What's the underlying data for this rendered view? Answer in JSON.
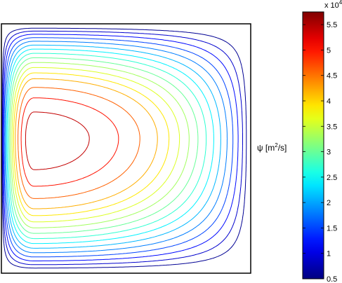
{
  "chart_data": {
    "type": "contour",
    "colorbar": {
      "label": "ψ [m²/s]",
      "label_parts": {
        "psi": "ψ",
        "open": "[m",
        "exp": "2",
        "close": "/s]"
      },
      "multiplier_label": "x 10",
      "multiplier_exponent": "4",
      "range": [
        0.5,
        5.75
      ],
      "ticks": [
        "0.5",
        "1",
        "1.5",
        "2",
        "2.5",
        "3",
        "3.5",
        "4",
        "4.5",
        "5",
        "5.5"
      ],
      "tick_values": [
        0.5,
        1,
        1.5,
        2,
        2.5,
        3,
        3.5,
        4,
        4.5,
        5,
        5.5
      ],
      "colormap": "jet"
    },
    "contour_levels": [
      0.6,
      0.9,
      1.2,
      1.5,
      1.8,
      2.1,
      2.4,
      2.7,
      3.0,
      3.3,
      3.6,
      3.9,
      4.2,
      4.6,
      5.0,
      5.4
    ],
    "field": {
      "center": [
        0.13,
        0.46
      ],
      "peak_value": 5.7,
      "description": "single clockwise circulation cell concentrated near west boundary"
    }
  }
}
